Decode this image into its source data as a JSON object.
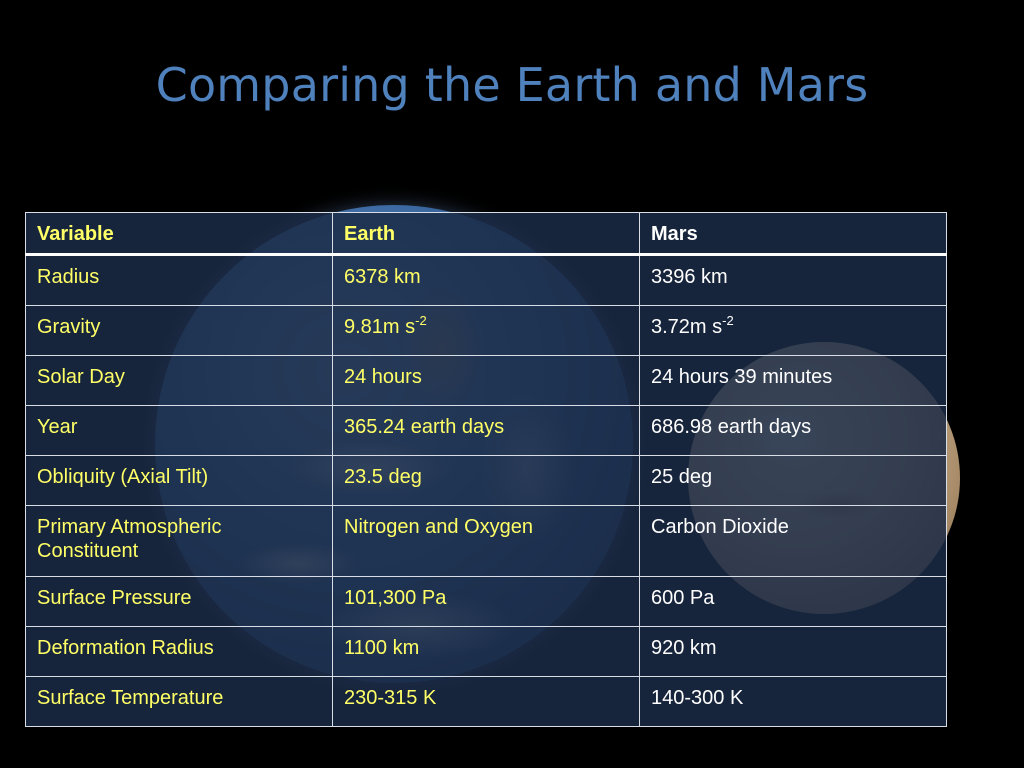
{
  "slide": {
    "title": "Comparing the Earth and Mars"
  },
  "table": {
    "headers": {
      "variable": "Variable",
      "earth": "Earth",
      "mars": "Mars"
    },
    "rows": [
      {
        "variable": "Radius",
        "earth": "6378 km",
        "mars": "3396 km"
      },
      {
        "variable": "Gravity",
        "earth": "9.81m s",
        "earth_sup": "-2",
        "mars": "3.72m s",
        "mars_sup": "-2"
      },
      {
        "variable": "Solar Day",
        "earth": "24 hours",
        "mars": "24 hours 39 minutes"
      },
      {
        "variable": "Year",
        "earth": "365.24 earth days",
        "mars": "686.98 earth days"
      },
      {
        "variable": "Obliquity (Axial Tilt)",
        "earth": "23.5 deg",
        "mars": "25 deg"
      },
      {
        "variable": "Primary Atmospheric Constituent",
        "earth": "Nitrogen and Oxygen",
        "mars": "Carbon Dioxide"
      },
      {
        "variable": "Surface Pressure",
        "earth": "101,300 Pa",
        "mars": "600 Pa"
      },
      {
        "variable": "Deformation Radius",
        "earth": "1100 km",
        "mars": "920 km"
      },
      {
        "variable": "Surface Temperature",
        "earth": "230-315 K",
        "mars": "140-300 K"
      }
    ]
  },
  "colors": {
    "title": "#4f81bd",
    "variable_text": "#ffff66",
    "earth_text": "#ffff66",
    "mars_text": "#ffffff",
    "cell_bg": "#1b2b46"
  }
}
